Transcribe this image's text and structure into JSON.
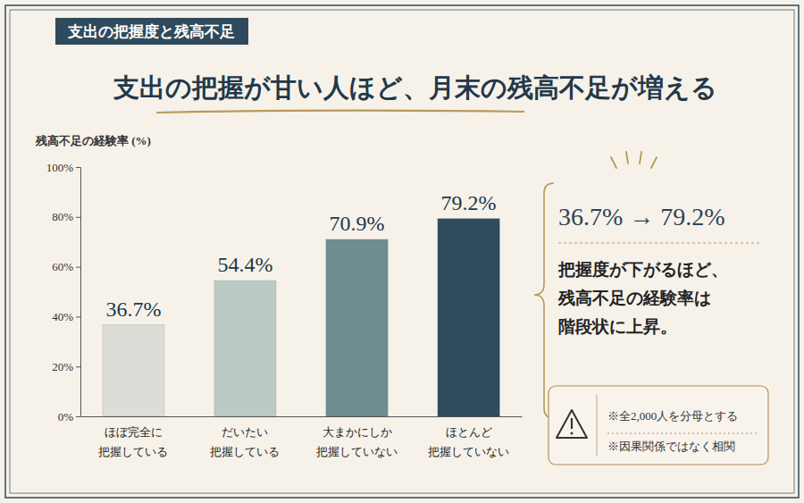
{
  "chart_data": {
    "type": "bar",
    "subtitle": "支出の把握度と残高不足",
    "title": "支出の把握が甘い人ほど、月末の残高不足が増える",
    "y_label": "残高不足の経験率 (%)",
    "categories": [
      "ほぼ完全に\n把握している",
      "だいたい\n把握している",
      "大まかにしか\n把握していない",
      "ほとんど\n把握していない"
    ],
    "values": [
      36.7,
      54.4,
      70.9,
      79.2
    ],
    "value_labels": [
      "36.7%",
      "54.4%",
      "70.9%",
      "79.2%"
    ],
    "data_labels": true,
    "colors": [
      "#dcddd6",
      "#bccac3",
      "#6d8d8f",
      "#2e4c5d"
    ],
    "ylim": [
      0,
      100
    ],
    "yticks": [
      {
        "value": 0,
        "label": "0%"
      },
      {
        "value": 20,
        "label": "20%"
      },
      {
        "value": 40,
        "label": "40%"
      },
      {
        "value": 60,
        "label": "60%"
      },
      {
        "value": 80,
        "label": "80%"
      },
      {
        "value": 100,
        "label": "100%"
      }
    ],
    "grid": false,
    "annotations": {
      "highlight": "36.7% → 79.2%",
      "description": [
        "把握度が下がるほど、",
        "残高不足の経験率は",
        "階段状に上昇。"
      ],
      "notes": [
        "※全2,000人を分母とする",
        "※因果関係ではなく相関"
      ]
    }
  }
}
